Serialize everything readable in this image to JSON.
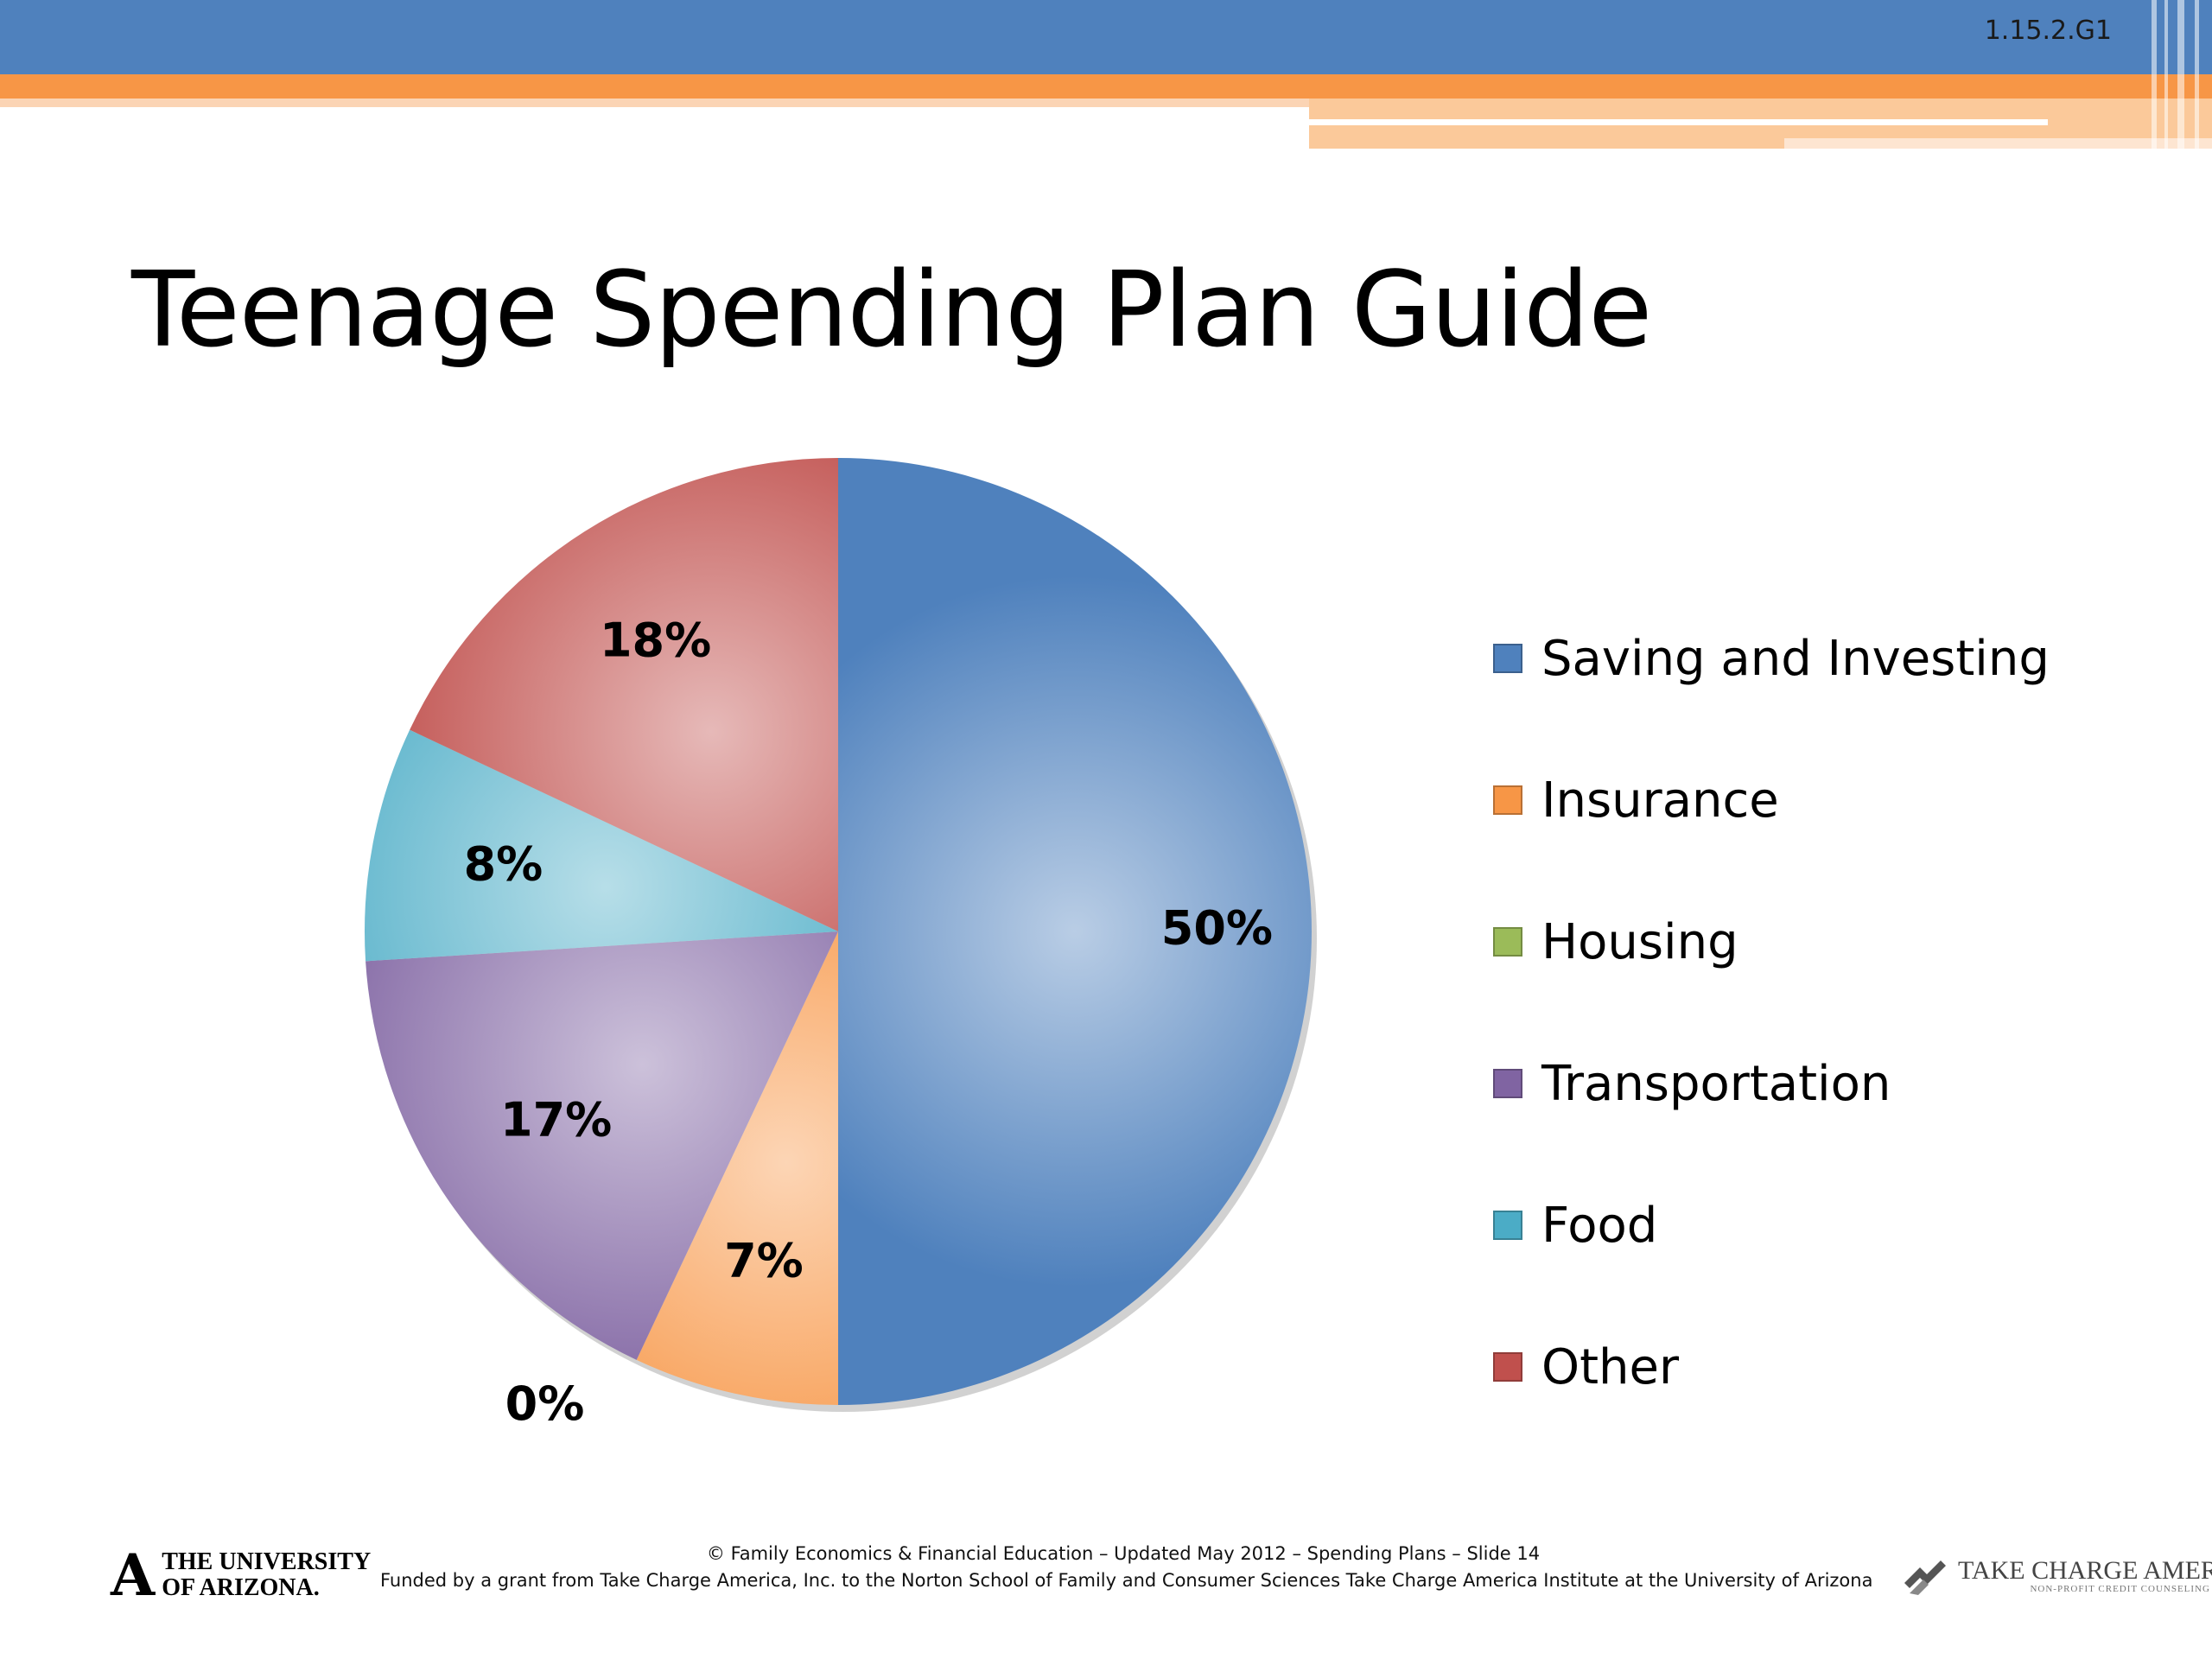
{
  "slide": {
    "code": "1.15.2.G1",
    "title": "Teenage Spending Plan Guide"
  },
  "chart_data": {
    "type": "pie",
    "categories": [
      "Saving and Investing",
      "Insurance",
      "Housing",
      "Transportation",
      "Food",
      "Other"
    ],
    "values": [
      50,
      7,
      0,
      17,
      8,
      18
    ],
    "data_labels": [
      "50%",
      "7%",
      "0%",
      "17%",
      "8%",
      "18%"
    ],
    "colors": [
      "#4f81bd",
      "#f79646",
      "#9bbb59",
      "#8064a2",
      "#4bacc6",
      "#c0504d"
    ],
    "legend_position": "right",
    "start_angle": "12 o'clock, clockwise"
  },
  "footer": {
    "university_line1": "THE UNIVERSITY",
    "university_line2": "OF ARIZONA.",
    "line1": "© Family Economics & Financial Education – Updated May 2012 – Spending Plans – Slide 14",
    "line2": "Funded by a grant from Take Charge America, Inc. to the Norton School of Family and Consumer Sciences  Take Charge America Institute at the University of Arizona",
    "tca_name": "TAKE CHARGE AMERICA®",
    "tca_sub": "NON-PROFIT CREDIT COUNSELING"
  }
}
